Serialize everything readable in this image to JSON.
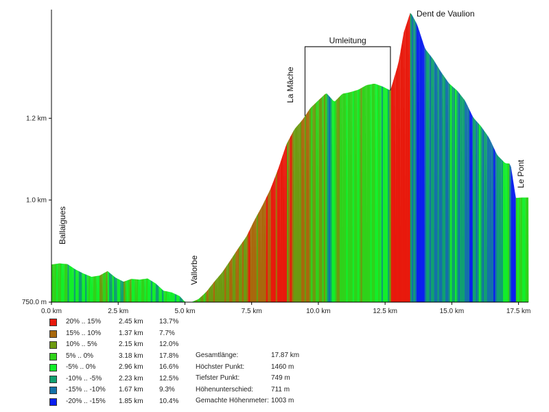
{
  "chart_data": {
    "type": "area",
    "title": "",
    "xlabel": "",
    "ylabel": "",
    "x_unit": "km",
    "y_unit": "m",
    "xlim": [
      0,
      17.87
    ],
    "ylim": [
      750,
      1460
    ],
    "x_ticks": [
      "0.0 km",
      "2.5 km",
      "5.0 km",
      "7.5 km",
      "10.0 km",
      "12.5 km",
      "15.0 km",
      "17.5 km"
    ],
    "y_ticks": [
      "750.0 m",
      "1.0 km",
      "1.2 km"
    ],
    "profile": {
      "x": [
        0,
        0.3,
        0.6,
        0.9,
        1.2,
        1.5,
        1.8,
        2.1,
        2.4,
        2.7,
        3.0,
        3.3,
        3.6,
        3.9,
        4.2,
        4.5,
        4.8,
        5.0,
        5.2,
        5.5,
        5.8,
        6.1,
        6.4,
        6.7,
        7.0,
        7.3,
        7.6,
        7.9,
        8.2,
        8.5,
        8.8,
        9.1,
        9.4,
        9.7,
        10.0,
        10.3,
        10.6,
        10.9,
        11.2,
        11.5,
        11.8,
        12.1,
        12.4,
        12.7,
        13.0,
        13.2,
        13.45,
        13.7,
        14.0,
        14.3,
        14.6,
        14.9,
        15.2,
        15.5,
        15.8,
        16.1,
        16.4,
        16.7,
        17.0,
        17.2,
        17.4,
        17.6,
        17.87
      ],
      "y": [
        842,
        845,
        843,
        830,
        820,
        812,
        815,
        826,
        810,
        800,
        807,
        805,
        808,
        796,
        778,
        774,
        765,
        751,
        749,
        757,
        775,
        800,
        823,
        852,
        882,
        910,
        950,
        986,
        1026,
        1077,
        1136,
        1173,
        1196,
        1225,
        1244,
        1262,
        1240,
        1260,
        1264,
        1270,
        1281,
        1285,
        1278,
        1268,
        1335,
        1410,
        1460,
        1430,
        1370,
        1345,
        1313,
        1285,
        1268,
        1243,
        1202,
        1180,
        1152,
        1110,
        1090,
        1089,
        1005,
        1006,
        1006
      ]
    },
    "gradient_classes": [
      {
        "range": "20% .. 15%",
        "distance": "2.45 km",
        "share": "13.7%",
        "color": "#e8190c"
      },
      {
        "range": "15% .. 10%",
        "distance": "1.37 km",
        "share": "7.7%",
        "color": "#a8680c"
      },
      {
        "range": "10% .. 5%",
        "distance": "2.15 km",
        "share": "12.0%",
        "color": "#6c9a10"
      },
      {
        "range": "5% .. 0%",
        "distance": "3.18 km",
        "share": "17.8%",
        "color": "#2fd21a"
      },
      {
        "range": "-5% .. 0%",
        "distance": "2.96 km",
        "share": "16.6%",
        "color": "#12ee2a"
      },
      {
        "range": "-10% .. -5%",
        "distance": "2.23 km",
        "share": "12.5%",
        "color": "#10a070"
      },
      {
        "range": "-15% .. -10%",
        "distance": "1.67 km",
        "share": "9.3%",
        "color": "#1470a8"
      },
      {
        "range": "-20% .. -15%",
        "distance": "1.85 km",
        "share": "10.4%",
        "color": "#0a1ef0"
      }
    ],
    "annotations": [
      {
        "text": "Ballaigues",
        "x": 0.6,
        "y": 842
      },
      {
        "text": "Vallorbe",
        "x": 5.2,
        "y": 752
      },
      {
        "text": "La Mâche",
        "x": 9.3,
        "y": 1200
      },
      {
        "text": "Dent de Vaulion",
        "x": 14.2,
        "y": 1460
      },
      {
        "text": "Le Pont",
        "x": 17.6,
        "y": 1006
      }
    ],
    "bracket": {
      "text": "Umleitung",
      "x_start": 9.5,
      "x_end": 12.7
    }
  },
  "stats": [
    {
      "label": "Gesamtlänge:",
      "value": "17.87  km"
    },
    {
      "label": "Höchster Punkt:",
      "value": "1460  m"
    },
    {
      "label": "Tiefster Punkt:",
      "value": "749  m"
    },
    {
      "label": "Höhenunterschied:",
      "value": "711  m"
    },
    {
      "label": "Gemachte Höhenmeter:",
      "value": "1003  m"
    }
  ]
}
